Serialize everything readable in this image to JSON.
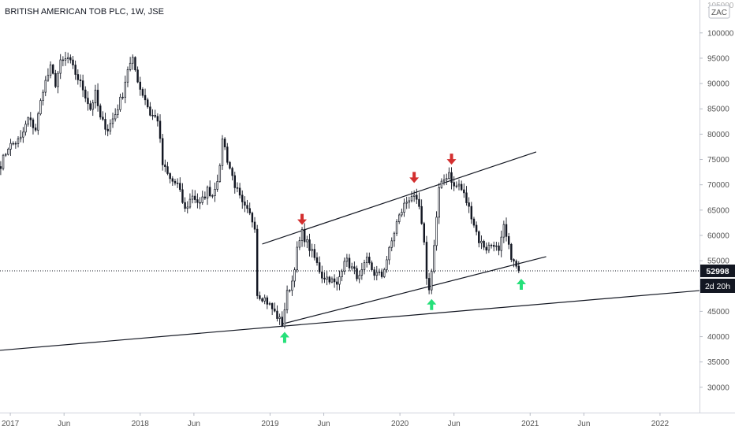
{
  "chart_data": {
    "type": "candlestick",
    "title": "BRITISH AMERICAN TOB PLC, 1W, JSE",
    "currency_label": "ZAC",
    "price_scale_top": "105000",
    "y_ticks": [
      30000,
      35000,
      40000,
      45000,
      50000,
      55000,
      60000,
      65000,
      70000,
      75000,
      80000,
      85000,
      90000,
      95000,
      100000
    ],
    "ylim": [
      25000,
      106500
    ],
    "x_ticks": [
      "2017",
      "Jun",
      "2018",
      "Jun",
      "2019",
      "Jun",
      "2020",
      "Jun",
      "2021",
      "Jun",
      "2022"
    ],
    "x_tick_dates": [
      "2017-01-01",
      "2017-06-01",
      "2018-01-01",
      "2018-06-01",
      "2019-01-01",
      "2019-06-01",
      "2020-01-01",
      "2020-06-01",
      "2021-01-01",
      "2021-06-01",
      "2022-01-01"
    ],
    "xlim": [
      "2016-12-03",
      "2022-04-22"
    ],
    "last_price": "52998",
    "countdown": "2d 20h",
    "last_price_value": 52998,
    "price_path": [
      [
        "2016-12-05",
        74000
      ],
      [
        "2016-12-26",
        77500
      ],
      [
        "2017-01-30",
        79000
      ],
      [
        "2017-02-20",
        83000
      ],
      [
        "2017-03-13",
        81000
      ],
      [
        "2017-04-03",
        89000
      ],
      [
        "2017-04-24",
        93000
      ],
      [
        "2017-05-08",
        90000
      ],
      [
        "2017-05-22",
        94000
      ],
      [
        "2017-06-12",
        95000
      ],
      [
        "2017-07-03",
        92000
      ],
      [
        "2017-07-24",
        89000
      ],
      [
        "2017-08-14",
        85000
      ],
      [
        "2017-08-28",
        88000
      ],
      [
        "2017-09-11",
        83000
      ],
      [
        "2017-10-02",
        81000
      ],
      [
        "2017-10-23",
        84000
      ],
      [
        "2017-11-13",
        88000
      ],
      [
        "2017-11-27",
        93000
      ],
      [
        "2017-12-11",
        94500
      ],
      [
        "2018-01-01",
        89000
      ],
      [
        "2018-01-15",
        87000
      ],
      [
        "2018-01-29",
        84000
      ],
      [
        "2018-02-19",
        83000
      ],
      [
        "2018-03-05",
        74000
      ],
      [
        "2018-03-26",
        71000
      ],
      [
        "2018-04-16",
        70000
      ],
      [
        "2018-05-07",
        65000
      ],
      [
        "2018-05-28",
        68000
      ],
      [
        "2018-06-18",
        66000
      ],
      [
        "2018-07-09",
        69000
      ],
      [
        "2018-07-23",
        68000
      ],
      [
        "2018-08-13",
        73000
      ],
      [
        "2018-08-20",
        79500
      ],
      [
        "2018-09-03",
        75000
      ],
      [
        "2018-09-24",
        70000
      ],
      [
        "2018-10-15",
        66000
      ],
      [
        "2018-11-05",
        64000
      ],
      [
        "2018-11-19",
        62000
      ],
      [
        "2018-11-26",
        48500
      ],
      [
        "2018-12-17",
        47500
      ],
      [
        "2019-01-07",
        45500
      ],
      [
        "2019-01-21",
        44000
      ],
      [
        "2019-02-04",
        42500
      ],
      [
        "2019-02-18",
        48500
      ],
      [
        "2019-03-04",
        51000
      ],
      [
        "2019-03-18",
        57000
      ],
      [
        "2019-04-01",
        60500
      ],
      [
        "2019-04-15",
        58500
      ],
      [
        "2019-05-06",
        55500
      ],
      [
        "2019-05-27",
        52000
      ],
      [
        "2019-06-17",
        51500
      ],
      [
        "2019-07-08",
        50000
      ],
      [
        "2019-07-29",
        55500
      ],
      [
        "2019-08-19",
        53500
      ],
      [
        "2019-09-09",
        51500
      ],
      [
        "2019-09-30",
        55000
      ],
      [
        "2019-10-21",
        52500
      ],
      [
        "2019-11-11",
        52000
      ],
      [
        "2019-12-02",
        57000
      ],
      [
        "2019-12-23",
        62500
      ],
      [
        "2020-01-13",
        66000
      ],
      [
        "2020-02-03",
        68000
      ],
      [
        "2020-02-24",
        65500
      ],
      [
        "2020-03-09",
        58000
      ],
      [
        "2020-03-16",
        52000
      ],
      [
        "2020-03-23",
        49000
      ],
      [
        "2020-04-06",
        58000
      ],
      [
        "2020-04-20",
        69000
      ],
      [
        "2020-05-04",
        71000
      ],
      [
        "2020-05-18",
        72500
      ],
      [
        "2020-06-01",
        69500
      ],
      [
        "2020-06-15",
        70000
      ],
      [
        "2020-06-29",
        68000
      ],
      [
        "2020-07-20",
        64000
      ],
      [
        "2020-08-10",
        59000
      ],
      [
        "2020-08-31",
        57500
      ],
      [
        "2020-09-21",
        58500
      ],
      [
        "2020-10-05",
        56500
      ],
      [
        "2020-10-19",
        61500
      ],
      [
        "2020-11-02",
        57500
      ],
      [
        "2020-11-16",
        54500
      ],
      [
        "2020-11-30",
        52998
      ]
    ],
    "trendlines": [
      {
        "from": [
          "2016-12-03",
          37300
        ],
        "to": [
          "2022-04-22",
          49100
        ]
      },
      {
        "from": [
          "2019-02-04",
          42500
        ],
        "to": [
          "2021-02-15",
          55800
        ]
      },
      {
        "from": [
          "2018-12-10",
          58300
        ],
        "to": [
          "2021-01-18",
          76500
        ]
      }
    ],
    "markers": [
      {
        "direction": "down",
        "color": "#d32f2f",
        "date": "2019-04-01",
        "value": 63000
      },
      {
        "direction": "down",
        "color": "#d32f2f",
        "date": "2020-02-10",
        "value": 71300
      },
      {
        "direction": "down",
        "color": "#d32f2f",
        "date": "2020-05-25",
        "value": 74900
      },
      {
        "direction": "up",
        "color": "#26e07a",
        "date": "2019-02-11",
        "value": 40000
      },
      {
        "direction": "up",
        "color": "#26e07a",
        "date": "2020-03-30",
        "value": 46500
      },
      {
        "direction": "up",
        "color": "#26e07a",
        "date": "2020-12-07",
        "value": 50500
      }
    ],
    "colors": {
      "candle": "#131722",
      "trendline": "#131722",
      "axis_text": "#555555",
      "price_tag_bg": "#131722",
      "price_tag_text": "#ffffff"
    },
    "grid": false
  }
}
